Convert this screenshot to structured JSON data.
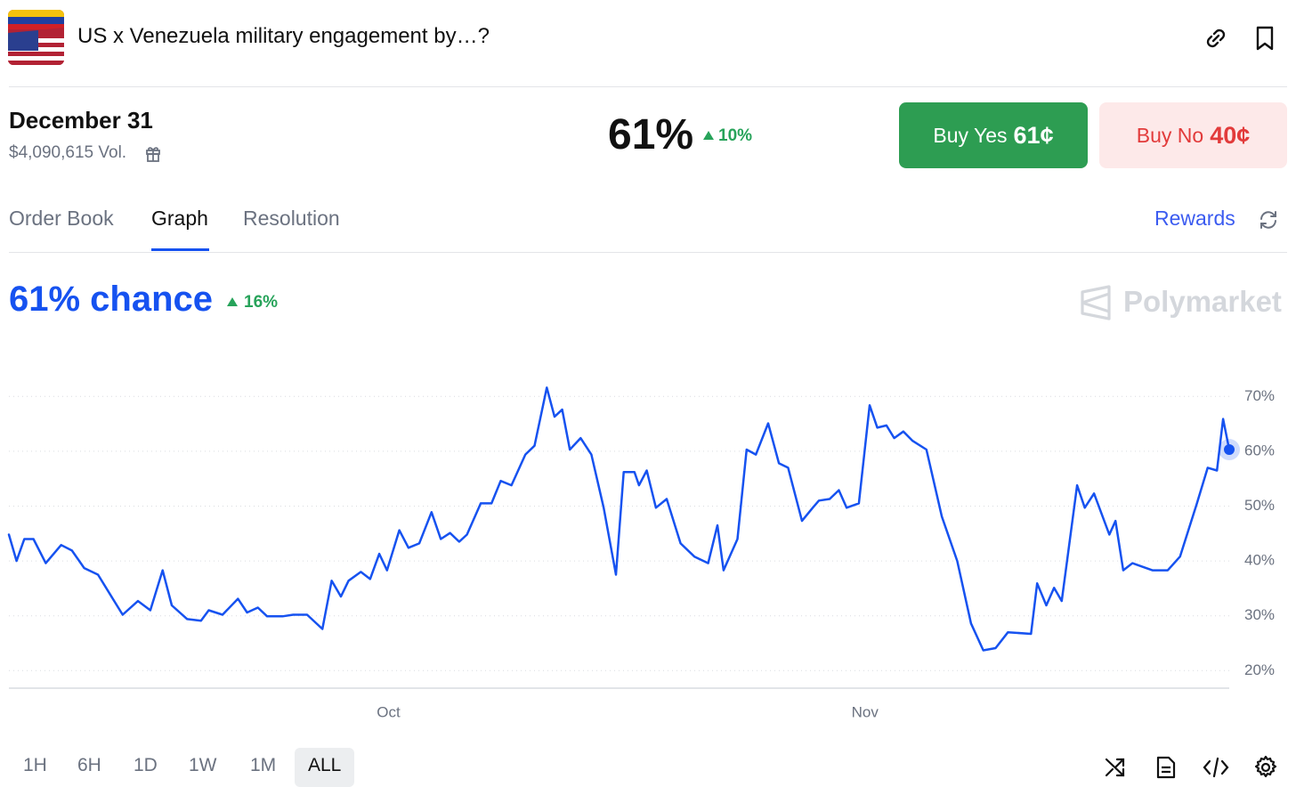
{
  "header": {
    "title": "US x Venezuela military engagement by…?"
  },
  "market": {
    "date": "December 31",
    "volume": "$4,090,615 Vol.",
    "price": "61%",
    "change": "10%",
    "buy_yes": {
      "label": "Buy Yes",
      "price": "61¢"
    },
    "buy_no": {
      "label": "Buy No",
      "price": "40¢"
    }
  },
  "tabs": [
    "Order Book",
    "Graph",
    "Resolution"
  ],
  "rewards": "Rewards",
  "ranges": [
    "1H",
    "6H",
    "1D",
    "1W",
    "1M",
    "ALL"
  ],
  "chart_data": {
    "type": "line",
    "title": "61% chance",
    "change": "16%",
    "watermark": "Polymarket",
    "color": "#1652f0",
    "grid": true,
    "y_axis_side": "right",
    "x": [
      0,
      0.5,
      1.0,
      1.6,
      2.4,
      3.4,
      4.1,
      4.9,
      5.8,
      6.5,
      7.4,
      8.4,
      9.2,
      10.0,
      10.6,
      11.6,
      12.5,
      13.0,
      13.9,
      14.9,
      15.5,
      16.2,
      16.8,
      17.8,
      18.5,
      19.4,
      20.4,
      21.0,
      21.6,
      22.1,
      22.9,
      23.5,
      24.1,
      24.6,
      25.4,
      26.0,
      26.7,
      27.5,
      28.1,
      28.7,
      29.3,
      29.8,
      30.7,
      31.4,
      32.0,
      32.7,
      33.6,
      34.2,
      35.0,
      35.5,
      36.0,
      36.5,
      37.2,
      37.9,
      38.7,
      39.5,
      40.0,
      40.7,
      41.0,
      41.5,
      42.1,
      42.8,
      43.7,
      44.6,
      45.5,
      46.1,
      46.5,
      47.4,
      48.0,
      48.6,
      49.4,
      50.1,
      50.7,
      51.6,
      52.3,
      52.7,
      53.4,
      54.0,
      54.5,
      55.3,
      56.0,
      56.5,
      57.1,
      57.6,
      58.2,
      58.8,
      59.7,
      60.7,
      61.7,
      62.6,
      63.4,
      64.2,
      65.0,
      66.5,
      66.9,
      67.5,
      68.0,
      68.5,
      69.5,
      70.0,
      70.6,
      71.6,
      72.0,
      72.5,
      73.1,
      74.4,
      75.4,
      76.2,
      77.3,
      78.0,
      78.6,
      79.0,
      79.4
    ],
    "values": [
      44.8,
      40,
      44,
      44,
      39.6,
      42.9,
      41.9,
      38.7,
      37.5,
      34.3,
      30.2,
      32.7,
      31,
      38.3,
      31.9,
      29.4,
      29.1,
      31,
      30.2,
      33.1,
      30.6,
      31.5,
      29.9,
      29.9,
      30.2,
      30.2,
      27.6,
      36.4,
      33.5,
      36.4,
      38,
      36.7,
      41.3,
      38.3,
      45.6,
      42.4,
      43.2,
      48.9,
      44,
      45.1,
      43.5,
      44.8,
      50.5,
      50.5,
      54.6,
      53.8,
      59.4,
      61,
      71.6,
      66.3,
      67.6,
      60.3,
      62.4,
      59.4,
      49.7,
      37.5,
      56.2,
      56.2,
      53.8,
      56.5,
      49.7,
      51.3,
      43.2,
      40.8,
      39.6,
      46.5,
      38.3,
      44,
      60.3,
      59.4,
      65.1,
      57.8,
      57,
      47.3,
      49.7,
      51,
      51.3,
      52.9,
      49.7,
      50.5,
      68.4,
      64.3,
      64.7,
      62.4,
      63.6,
      61.9,
      60.3,
      48.1,
      40,
      28.6,
      23.7,
      24.1,
      27,
      26.7,
      35.9,
      31.9,
      35.1,
      32.7,
      53.8,
      49.7,
      52.3,
      44.8,
      47.3,
      38.3,
      39.6,
      38.3,
      38.3,
      40.8,
      50.5,
      57,
      56.5,
      65.9,
      60.3
    ],
    "xlim": [
      0,
      79.4
    ],
    "xticks": [
      {
        "value": 24.7,
        "label": "Oct"
      },
      {
        "value": 55.7,
        "label": "Nov"
      }
    ],
    "ylim": [
      16.8,
      75
    ],
    "yticks": [
      {
        "value": 20,
        "label": "20%"
      },
      {
        "value": 30,
        "label": "30%"
      },
      {
        "value": 40,
        "label": "40%"
      },
      {
        "value": 50,
        "label": "50%"
      },
      {
        "value": 60,
        "label": "60%"
      },
      {
        "value": 70,
        "label": "70%"
      }
    ]
  }
}
